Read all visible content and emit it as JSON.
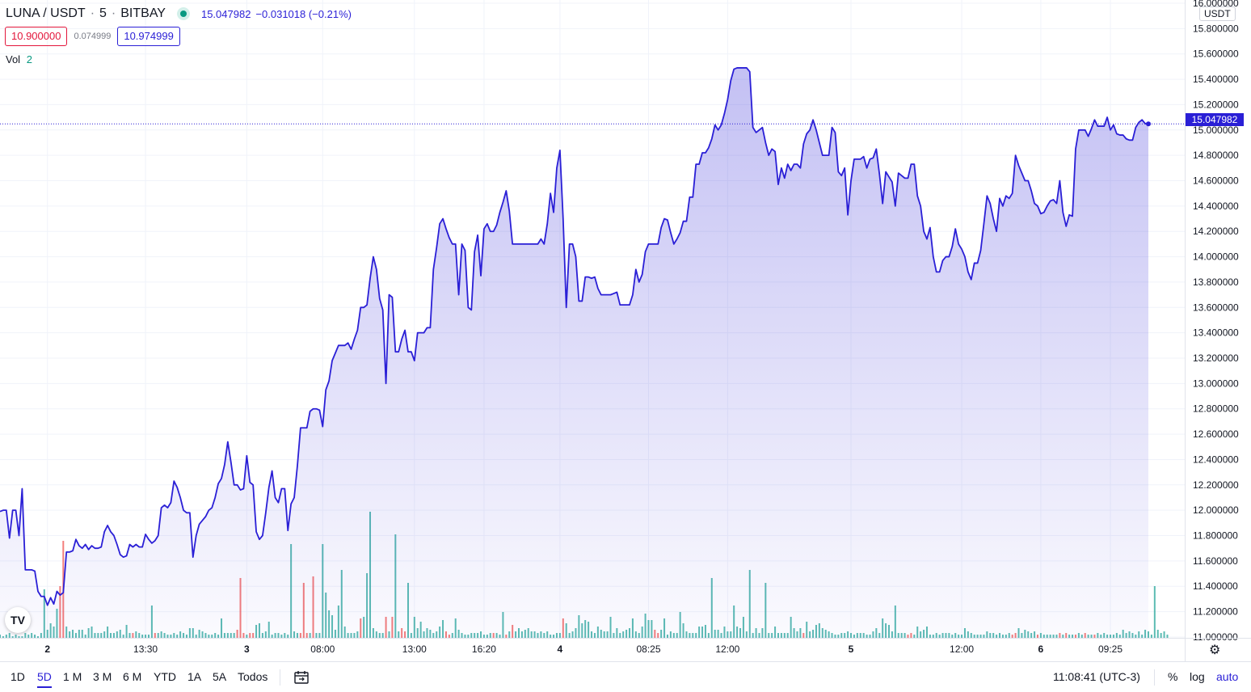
{
  "header": {
    "symbol": "LUNA / USDT",
    "interval": "5",
    "exchange": "BITBAY",
    "last_price": "15.047982",
    "change": "−0.031018 (−0.21%)",
    "bid": "10.900000",
    "spread": "0.074999",
    "ask": "10.974999",
    "vol_label": "Vol",
    "vol_value": "2"
  },
  "axis": {
    "currency": "USDT",
    "last_tag": "15.047982"
  },
  "bottom": {
    "timeframes": [
      "1D",
      "5D",
      "1 M",
      "3 M",
      "6 M",
      "YTD",
      "1A",
      "5A",
      "Todos"
    ],
    "active_timeframe": "5D",
    "clock": "11:08:41 (UTC-3)",
    "percent": "%",
    "log": "log",
    "auto": "auto"
  },
  "colors": {
    "line": "#2a1fd6",
    "vol_up": "#26a69a",
    "vol_down": "#ef5350"
  },
  "chart_data": {
    "type": "area",
    "title": "LUNA / USDT · 5 · BITBAY",
    "y_label": "USDT",
    "ylim": [
      10.8,
      16.0
    ],
    "y_ticks": [
      "16.000000",
      "15.800000",
      "15.600000",
      "15.400000",
      "15.200000",
      "15.000000",
      "14.800000",
      "14.600000",
      "14.400000",
      "14.200000",
      "14.000000",
      "13.800000",
      "13.600000",
      "13.400000",
      "13.200000",
      "13.000000",
      "12.800000",
      "12.600000",
      "12.400000",
      "12.200000",
      "12.000000",
      "11.800000",
      "11.600000",
      "11.400000",
      "11.200000",
      "11.000000"
    ],
    "x_ticks": [
      {
        "label": "2",
        "bold": true,
        "i": 15
      },
      {
        "label": "13:30",
        "i": 46
      },
      {
        "label": "3",
        "bold": true,
        "i": 78
      },
      {
        "label": "08:00",
        "i": 102
      },
      {
        "label": "13:00",
        "i": 131
      },
      {
        "label": "16:20",
        "i": 153
      },
      {
        "label": "4",
        "bold": true,
        "i": 177
      },
      {
        "label": "08:25",
        "i": 205
      },
      {
        "label": "12:00",
        "i": 230
      },
      {
        "label": "5",
        "bold": true,
        "i": 269
      },
      {
        "label": "12:00",
        "i": 304
      },
      {
        "label": "6",
        "bold": true,
        "i": 329
      },
      {
        "label": "09:25",
        "i": 351
      }
    ],
    "series": [
      {
        "values": [
          11.99,
          12.0,
          12.0,
          11.78,
          12.0,
          12.0,
          11.8,
          12.17,
          11.53,
          11.53,
          11.53,
          11.52,
          11.36,
          11.32,
          11.32,
          11.25,
          11.31,
          11.26,
          11.36,
          11.33,
          11.35,
          11.67,
          11.67,
          11.68,
          11.77,
          11.72,
          11.7,
          11.73,
          11.69,
          11.72,
          11.7,
          11.7,
          11.71,
          11.83,
          11.88,
          11.83,
          11.8,
          11.73,
          11.65,
          11.63,
          11.64,
          11.73,
          11.71,
          11.73,
          11.71,
          11.71,
          11.81,
          11.77,
          11.74,
          11.76,
          11.8,
          12.02,
          12.04,
          12.02,
          12.06,
          12.23,
          12.18,
          12.1,
          12.0,
          11.98,
          11.98,
          11.63,
          11.8,
          11.89,
          11.92,
          11.95,
          12.0,
          12.02,
          12.1,
          12.21,
          12.25,
          12.36,
          12.54,
          12.38,
          12.2,
          12.2,
          12.16,
          12.17,
          12.43,
          12.22,
          12.2,
          11.83,
          11.77,
          11.8,
          11.98,
          12.18,
          12.31,
          12.1,
          12.06,
          12.17,
          12.17,
          11.84,
          12.05,
          12.1,
          12.35,
          12.65,
          12.65,
          12.65,
          12.78,
          12.8,
          12.8,
          12.79,
          12.66,
          12.95,
          13.02,
          13.18,
          13.24,
          13.3,
          13.3,
          13.3,
          13.32,
          13.27,
          13.35,
          13.42,
          13.6,
          13.6,
          13.62,
          13.83,
          14.0,
          13.9,
          13.67,
          13.58,
          13.0,
          13.7,
          13.68,
          13.25,
          13.25,
          13.35,
          13.42,
          13.25,
          13.25,
          13.18,
          13.4,
          13.4,
          13.4,
          13.44,
          13.44,
          13.9,
          14.07,
          14.26,
          14.3,
          14.22,
          14.15,
          14.1,
          14.1,
          13.7,
          14.1,
          14.05,
          13.6,
          13.58,
          14.04,
          14.17,
          13.85,
          14.22,
          14.26,
          14.2,
          14.2,
          14.25,
          14.35,
          14.43,
          14.52,
          14.36,
          14.1,
          14.1,
          14.1,
          14.1,
          14.1,
          14.1,
          14.1,
          14.1,
          14.1,
          14.14,
          14.1,
          14.26,
          14.5,
          14.35,
          14.7,
          14.84,
          14.3,
          13.6,
          14.1,
          14.1,
          14.0,
          13.65,
          13.65,
          13.84,
          13.84,
          13.83,
          13.84,
          13.75,
          13.7,
          13.7,
          13.7,
          13.7,
          13.71,
          13.72,
          13.62,
          13.62,
          13.62,
          13.62,
          13.7,
          13.9,
          13.8,
          13.86,
          14.04,
          14.1,
          14.1,
          14.1,
          14.1,
          14.23,
          14.3,
          14.29,
          14.19,
          14.1,
          14.14,
          14.19,
          14.28,
          14.28,
          14.47,
          14.47,
          14.73,
          14.73,
          14.82,
          14.82,
          14.86,
          14.93,
          15.04,
          15.0,
          15.04,
          15.13,
          15.24,
          15.39,
          15.48,
          15.49,
          15.49,
          15.49,
          15.49,
          15.46,
          15.02,
          14.98,
          15.0,
          15.02,
          14.9,
          14.8,
          14.85,
          14.83,
          14.57,
          14.7,
          14.62,
          14.73,
          14.68,
          14.73,
          14.73,
          14.7,
          14.89,
          14.97,
          15.0,
          15.08,
          15.0,
          14.9,
          14.8,
          14.8,
          14.8,
          15.02,
          14.98,
          14.67,
          14.64,
          14.7,
          14.33,
          14.6,
          14.77,
          14.77,
          14.77,
          14.79,
          14.7,
          14.77,
          14.78,
          14.85,
          14.65,
          14.42,
          14.67,
          14.63,
          14.59,
          14.4,
          14.66,
          14.64,
          14.62,
          14.62,
          14.73,
          14.73,
          14.48,
          14.4,
          14.2,
          14.14,
          14.23,
          14.0,
          13.88,
          13.88,
          13.97,
          14.0,
          14.0,
          14.08,
          14.22,
          14.1,
          14.06,
          14.0,
          13.88,
          13.82,
          13.95,
          13.95,
          14.05,
          14.26,
          14.48,
          14.42,
          14.3,
          14.2,
          14.46,
          14.4,
          14.48,
          14.46,
          14.5,
          14.8,
          14.72,
          14.66,
          14.6,
          14.6,
          14.52,
          14.42,
          14.4,
          14.34,
          14.35,
          14.4,
          14.44,
          14.45,
          14.42,
          14.6,
          14.35,
          14.24,
          14.33,
          14.32,
          14.85,
          15.0,
          15.0,
          15.0,
          14.95,
          15.01,
          15.08,
          15.03,
          15.03,
          15.03,
          15.1,
          15.0,
          15.04,
          14.97,
          14.96,
          14.96,
          14.93,
          14.92,
          14.92,
          15.02,
          15.06,
          15.08,
          15.05,
          15.047982
        ]
      }
    ],
    "volume": {
      "values": [
        0.02,
        0.01,
        0.02,
        0.03,
        0.01,
        0.02,
        0.01,
        0.01,
        0.03,
        0.02,
        0.03,
        0.02,
        0.01,
        0.03,
        0.3,
        0.05,
        0.09,
        0.07,
        0.18,
        0.32,
        0.6,
        0.07,
        0.04,
        0.05,
        0.03,
        0.05,
        0.05,
        0.02,
        0.06,
        0.07,
        0.03,
        0.03,
        0.03,
        0.04,
        0.07,
        0.03,
        0.03,
        0.04,
        0.05,
        0.02,
        0.08,
        0.03,
        0.03,
        0.04,
        0.03,
        0.02,
        0.02,
        0.02,
        0.2,
        0.03,
        0.03,
        0.04,
        0.03,
        0.02,
        0.02,
        0.03,
        0.02,
        0.04,
        0.03,
        0.02,
        0.06,
        0.06,
        0.02,
        0.05,
        0.04,
        0.03,
        0.02,
        0.02,
        0.03,
        0.02,
        0.12,
        0.03,
        0.03,
        0.03,
        0.03,
        0.05,
        0.37,
        0.03,
        0.02,
        0.03,
        0.03,
        0.08,
        0.09,
        0.03,
        0.04,
        0.1,
        0.02,
        0.03,
        0.03,
        0.02,
        0.03,
        0.02,
        0.58,
        0.04,
        0.03,
        0.03,
        0.34,
        0.03,
        0.03,
        0.38,
        0.03,
        0.03,
        0.58,
        0.28,
        0.17,
        0.14,
        0.05,
        0.2,
        0.42,
        0.07,
        0.03,
        0.03,
        0.03,
        0.04,
        0.12,
        0.13,
        0.4,
        0.78,
        0.06,
        0.04,
        0.03,
        0.03,
        0.13,
        0.04,
        0.13,
        0.64,
        0.04,
        0.06,
        0.04,
        0.34,
        0.03,
        0.13,
        0.06,
        0.1,
        0.04,
        0.06,
        0.05,
        0.03,
        0.04,
        0.07,
        0.11,
        0.04,
        0.02,
        0.03,
        0.12,
        0.05,
        0.03,
        0.02,
        0.02,
        0.03,
        0.03,
        0.03,
        0.04,
        0.02,
        0.02,
        0.03,
        0.03,
        0.03,
        0.02,
        0.16,
        0.02,
        0.04,
        0.08,
        0.04,
        0.06,
        0.04,
        0.05,
        0.06,
        0.04,
        0.04,
        0.03,
        0.04,
        0.03,
        0.04,
        0.02,
        0.02,
        0.03,
        0.03,
        0.12,
        0.09,
        0.03,
        0.04,
        0.06,
        0.14,
        0.09,
        0.11,
        0.1,
        0.04,
        0.03,
        0.07,
        0.05,
        0.04,
        0.04,
        0.13,
        0.03,
        0.06,
        0.03,
        0.04,
        0.05,
        0.06,
        0.12,
        0.04,
        0.03,
        0.07,
        0.15,
        0.11,
        0.11,
        0.05,
        0.03,
        0.05,
        0.12,
        0.02,
        0.04,
        0.03,
        0.03,
        0.16,
        0.09,
        0.04,
        0.03,
        0.03,
        0.03,
        0.07,
        0.07,
        0.08,
        0.03,
        0.37,
        0.05,
        0.05,
        0.03,
        0.07,
        0.04,
        0.04,
        0.2,
        0.07,
        0.06,
        0.13,
        0.04,
        0.42,
        0.03,
        0.06,
        0.03,
        0.06,
        0.34,
        0.03,
        0.03,
        0.07,
        0.03,
        0.03,
        0.03,
        0.03,
        0.13,
        0.06,
        0.04,
        0.06,
        0.03,
        0.1,
        0.04,
        0.05,
        0.08,
        0.09,
        0.06,
        0.05,
        0.04,
        0.03,
        0.02,
        0.02,
        0.03,
        0.03,
        0.04,
        0.03,
        0.02,
        0.03,
        0.03,
        0.03,
        0.02,
        0.02,
        0.04,
        0.06,
        0.03,
        0.12,
        0.09,
        0.08,
        0.04,
        0.2,
        0.03,
        0.03,
        0.03,
        0.02,
        0.03,
        0.02,
        0.07,
        0.04,
        0.05,
        0.07,
        0.02,
        0.02,
        0.03,
        0.02,
        0.03,
        0.03,
        0.03,
        0.02,
        0.03,
        0.02,
        0.02,
        0.06,
        0.04,
        0.03,
        0.02,
        0.02,
        0.02,
        0.02,
        0.04,
        0.03,
        0.03,
        0.02,
        0.03,
        0.02,
        0.02,
        0.03,
        0.02,
        0.03,
        0.06,
        0.03,
        0.05,
        0.04,
        0.03,
        0.04,
        0.02,
        0.03,
        0.02,
        0.02,
        0.02,
        0.02,
        0.02,
        0.03,
        0.02,
        0.03,
        0.02,
        0.02,
        0.02,
        0.03,
        0.02,
        0.03,
        0.02,
        0.02,
        0.02,
        0.03,
        0.02,
        0.03,
        0.02,
        0.02,
        0.02,
        0.03,
        0.02,
        0.05,
        0.03,
        0.04,
        0.03,
        0.02,
        0.04,
        0.02,
        0.05,
        0.04,
        0.02,
        0.32,
        0.05,
        0.03,
        0.04,
        0.02
      ],
      "down": [
        19,
        20,
        42,
        49,
        75,
        76,
        77,
        79,
        80,
        95,
        96,
        97,
        99,
        114,
        122,
        124,
        127,
        128,
        141,
        142,
        156,
        160,
        162,
        178,
        207,
        208,
        254,
        287,
        288,
        320,
        321,
        328,
        335,
        337,
        340,
        343,
        346
      ]
    }
  }
}
